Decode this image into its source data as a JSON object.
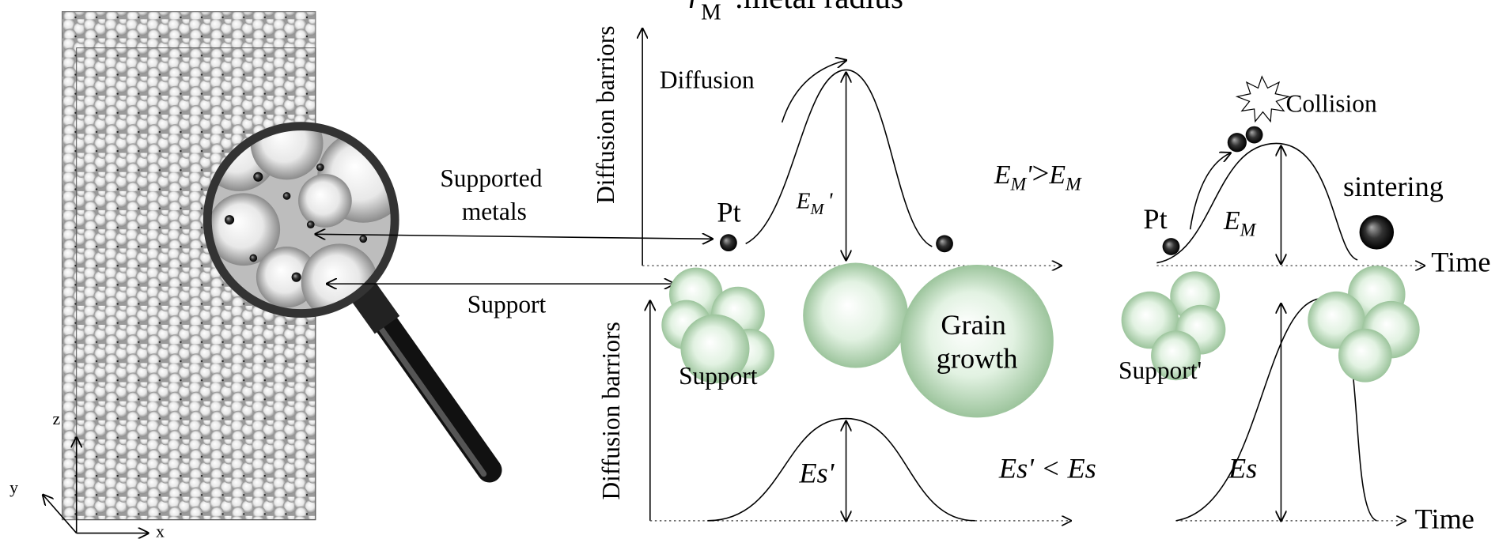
{
  "title": [
    "r",
    "M",
    ":metal radius"
  ],
  "axes": {
    "top_y": "Diffusion barriors",
    "bottom_y": "Diffusion barriors",
    "top_x": "Time",
    "bottom_x": "Time",
    "z": "z",
    "y": "y",
    "x": "x"
  },
  "left": {
    "supported_metals": [
      "Supported",
      "metals"
    ],
    "support": "Support"
  },
  "top_left": {
    "diffusion": "Diffusion",
    "pt": "Pt",
    "barrier": [
      "E",
      "M",
      "'"
    ]
  },
  "comparison_top": [
    "E",
    "M",
    "'",
    ">",
    "E",
    "M"
  ],
  "top_right": {
    "collision": "Collision",
    "pt": "Pt",
    "sintering": "sintering",
    "barrier": [
      "E",
      "M"
    ]
  },
  "bottom_left": {
    "support": "Support",
    "grain_growth": [
      "Grain",
      "growth"
    ],
    "barrier": "Es'"
  },
  "comparison_bottom": "Es' < Es",
  "bottom_right": {
    "support": "Support'",
    "barrier": "Es"
  }
}
